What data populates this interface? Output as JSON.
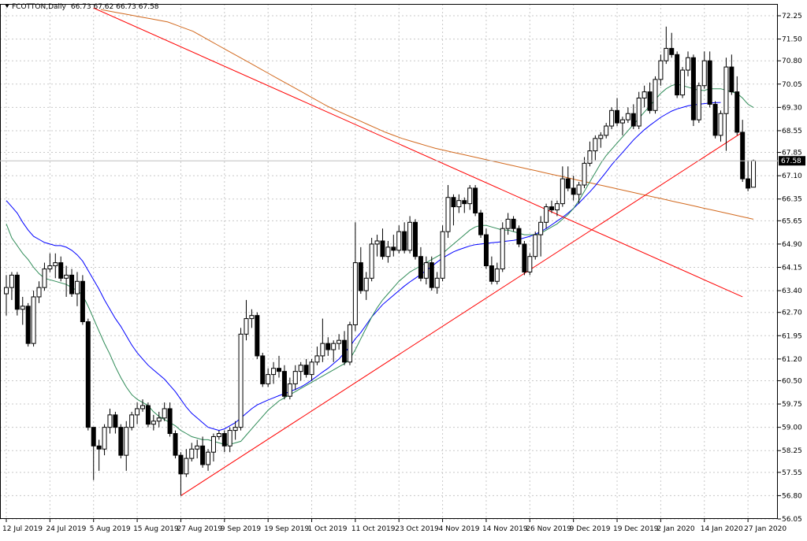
{
  "header": {
    "symbol": "FCOTTON,",
    "timeframe": "Daily",
    "open": "66.73",
    "high": "67.62",
    "low": "66.73",
    "close": "67.58"
  },
  "price_label": "67.58",
  "colors": {
    "up_body": "#ffffff",
    "down_body": "#000000",
    "ma_fast": "#2e8b57",
    "ma_mid": "#0000ff",
    "ma_slow": "#d2691e",
    "trendline": "#ff0000",
    "grid": "#c8c8c8",
    "price_line": "#c0c0c0"
  },
  "chart_data": {
    "type": "candlestick",
    "title": "FCOTTON, Daily",
    "ylim": [
      56.05,
      72.5
    ],
    "grid": true,
    "y_ticks": [
      "72.25",
      "71.50",
      "70.80",
      "70.05",
      "69.30",
      "68.55",
      "67.85",
      "67.10",
      "66.35",
      "65.65",
      "64.90",
      "64.15",
      "63.40",
      "62.70",
      "61.95",
      "61.20",
      "60.50",
      "59.75",
      "59.00",
      "58.25",
      "57.55",
      "56.80",
      "56.05"
    ],
    "x_tick_labels": [
      {
        "label": "12 Jul 2019",
        "bar": 0
      },
      {
        "label": "24 Jul 2019",
        "bar": 8
      },
      {
        "label": "5 Aug 2019",
        "bar": 16
      },
      {
        "label": "15 Aug 2019",
        "bar": 24
      },
      {
        "label": "27 Aug 2019",
        "bar": 32
      },
      {
        "label": "9 Sep 2019",
        "bar": 40
      },
      {
        "label": "19 Sep 2019",
        "bar": 48
      },
      {
        "label": "1 Oct 2019",
        "bar": 56
      },
      {
        "label": "11 Oct 2019",
        "bar": 64
      },
      {
        "label": "23 Oct 2019",
        "bar": 72
      },
      {
        "label": "4 Nov 2019",
        "bar": 80
      },
      {
        "label": "14 Nov 2019",
        "bar": 88
      },
      {
        "label": "26 Nov 2019",
        "bar": 96
      },
      {
        "label": "9 Dec 2019",
        "bar": 104
      },
      {
        "label": "19 Dec 2019",
        "bar": 112
      },
      {
        "label": "2 Jan 2020",
        "bar": 120
      },
      {
        "label": "14 Jan 2020",
        "bar": 128
      },
      {
        "label": "27 Jan 2020",
        "bar": 136
      }
    ],
    "candles_ohlc": [
      [
        63.3,
        63.9,
        62.6,
        63.5
      ],
      [
        63.5,
        64.0,
        63.1,
        63.9
      ],
      [
        63.9,
        64.0,
        62.6,
        62.8
      ],
      [
        62.8,
        63.2,
        62.3,
        62.9
      ],
      [
        62.9,
        63.0,
        61.6,
        61.7
      ],
      [
        61.7,
        63.4,
        61.6,
        63.2
      ],
      [
        63.2,
        63.7,
        63.0,
        63.5
      ],
      [
        63.5,
        64.3,
        63.4,
        64.1
      ],
      [
        64.1,
        64.6,
        64.0,
        64.2
      ],
      [
        64.2,
        64.6,
        63.8,
        64.3
      ],
      [
        64.3,
        64.5,
        63.7,
        63.8
      ],
      [
        63.8,
        64.2,
        63.2,
        63.9
      ],
      [
        63.9,
        64.1,
        63.2,
        63.3
      ],
      [
        63.3,
        64.0,
        62.9,
        63.7
      ],
      [
        63.7,
        63.9,
        62.3,
        62.4
      ],
      [
        62.4,
        62.5,
        58.9,
        59.0
      ],
      [
        59.0,
        59.0,
        57.3,
        58.4
      ],
      [
        58.4,
        58.6,
        57.6,
        58.3
      ],
      [
        58.3,
        59.1,
        58.1,
        59.0
      ],
      [
        59.0,
        59.6,
        58.8,
        59.4
      ],
      [
        59.4,
        59.5,
        58.8,
        59.0
      ],
      [
        59.0,
        59.1,
        58.0,
        58.1
      ],
      [
        58.1,
        59.2,
        57.6,
        59.0
      ],
      [
        59.0,
        59.5,
        58.9,
        59.4
      ],
      [
        59.4,
        59.8,
        59.1,
        59.6
      ],
      [
        59.6,
        59.9,
        59.5,
        59.7
      ],
      [
        59.7,
        59.8,
        59.0,
        59.1
      ],
      [
        59.1,
        59.4,
        58.9,
        59.2
      ],
      [
        59.2,
        59.5,
        59.0,
        59.3
      ],
      [
        59.3,
        59.8,
        59.2,
        59.6
      ],
      [
        59.6,
        59.8,
        58.7,
        58.8
      ],
      [
        58.8,
        58.9,
        58.0,
        58.1
      ],
      [
        58.1,
        58.2,
        56.8,
        57.5
      ],
      [
        57.5,
        58.3,
        57.4,
        58.0
      ],
      [
        58.0,
        58.5,
        57.9,
        58.3
      ],
      [
        58.3,
        58.6,
        58.0,
        58.4
      ],
      [
        58.4,
        58.7,
        57.7,
        57.8
      ],
      [
        57.8,
        58.3,
        57.6,
        58.2
      ],
      [
        58.2,
        58.8,
        57.9,
        58.7
      ],
      [
        58.7,
        58.9,
        58.6,
        58.8
      ],
      [
        58.8,
        58.9,
        58.2,
        58.4
      ],
      [
        58.4,
        59.0,
        58.2,
        58.9
      ],
      [
        58.9,
        59.2,
        58.6,
        59.0
      ],
      [
        59.0,
        62.2,
        58.9,
        62.0
      ],
      [
        62.0,
        63.1,
        61.8,
        62.5
      ],
      [
        62.5,
        62.8,
        62.2,
        62.6
      ],
      [
        62.6,
        62.7,
        61.2,
        61.3
      ],
      [
        61.3,
        61.4,
        60.3,
        60.4
      ],
      [
        60.4,
        60.9,
        60.3,
        60.7
      ],
      [
        60.7,
        61.1,
        60.4,
        60.9
      ],
      [
        60.9,
        61.3,
        60.6,
        60.8
      ],
      [
        60.8,
        61.0,
        59.9,
        60.0
      ],
      [
        60.0,
        60.6,
        59.9,
        60.4
      ],
      [
        60.4,
        61.0,
        60.2,
        60.8
      ],
      [
        60.8,
        61.1,
        60.5,
        61.0
      ],
      [
        61.0,
        61.2,
        60.6,
        60.7
      ],
      [
        60.7,
        61.2,
        60.5,
        61.1
      ],
      [
        61.1,
        61.6,
        61.0,
        61.3
      ],
      [
        61.3,
        62.5,
        61.1,
        61.7
      ],
      [
        61.7,
        61.9,
        61.3,
        61.5
      ],
      [
        61.5,
        61.8,
        61.1,
        61.7
      ],
      [
        61.7,
        62.0,
        61.5,
        61.8
      ],
      [
        61.8,
        62.1,
        61.0,
        61.1
      ],
      [
        61.1,
        62.4,
        61.0,
        62.3
      ],
      [
        62.3,
        65.6,
        62.1,
        64.3
      ],
      [
        64.3,
        64.8,
        63.3,
        63.4
      ],
      [
        63.4,
        64.0,
        63.1,
        63.8
      ],
      [
        63.8,
        65.1,
        63.7,
        64.9
      ],
      [
        64.9,
        65.2,
        64.5,
        65.0
      ],
      [
        65.0,
        65.4,
        64.4,
        64.5
      ],
      [
        64.5,
        65.0,
        64.3,
        64.8
      ],
      [
        64.8,
        65.2,
        64.5,
        64.7
      ],
      [
        64.7,
        65.5,
        64.6,
        65.3
      ],
      [
        65.3,
        65.6,
        64.6,
        64.7
      ],
      [
        64.7,
        65.8,
        64.6,
        65.6
      ],
      [
        65.6,
        65.7,
        64.4,
        64.5
      ],
      [
        64.5,
        64.8,
        63.7,
        63.8
      ],
      [
        63.8,
        64.5,
        63.6,
        64.3
      ],
      [
        64.3,
        64.5,
        63.4,
        63.5
      ],
      [
        63.5,
        64.0,
        63.3,
        63.8
      ],
      [
        63.8,
        65.5,
        63.7,
        65.3
      ],
      [
        65.3,
        66.8,
        65.1,
        66.4
      ],
      [
        66.4,
        66.5,
        65.5,
        66.1
      ],
      [
        66.1,
        66.5,
        65.9,
        66.3
      ],
      [
        66.3,
        66.4,
        65.9,
        66.2
      ],
      [
        66.2,
        66.8,
        66.0,
        66.7
      ],
      [
        66.7,
        66.8,
        65.8,
        65.9
      ],
      [
        65.9,
        66.0,
        65.1,
        65.2
      ],
      [
        65.2,
        65.4,
        64.1,
        64.2
      ],
      [
        64.2,
        64.5,
        63.6,
        63.7
      ],
      [
        63.7,
        64.3,
        63.6,
        64.1
      ],
      [
        64.1,
        65.6,
        64.0,
        65.4
      ],
      [
        65.4,
        65.9,
        65.2,
        65.7
      ],
      [
        65.7,
        65.8,
        65.3,
        65.4
      ],
      [
        65.4,
        65.5,
        64.8,
        64.9
      ],
      [
        64.9,
        65.0,
        63.9,
        64.0
      ],
      [
        64.0,
        64.6,
        63.9,
        64.5
      ],
      [
        64.5,
        65.3,
        64.4,
        65.2
      ],
      [
        65.2,
        65.8,
        64.5,
        65.6
      ],
      [
        65.6,
        66.2,
        65.4,
        66.1
      ],
      [
        66.1,
        66.3,
        65.9,
        66.0
      ],
      [
        66.0,
        66.3,
        65.8,
        66.2
      ],
      [
        66.2,
        67.4,
        66.1,
        67.0
      ],
      [
        67.0,
        67.4,
        66.6,
        66.7
      ],
      [
        66.7,
        67.1,
        66.3,
        66.5
      ],
      [
        66.5,
        66.9,
        66.2,
        66.8
      ],
      [
        66.8,
        67.7,
        66.7,
        67.5
      ],
      [
        67.5,
        68.2,
        67.4,
        67.9
      ],
      [
        67.9,
        68.4,
        67.6,
        68.3
      ],
      [
        68.3,
        68.5,
        68.0,
        68.4
      ],
      [
        68.4,
        68.8,
        68.3,
        68.7
      ],
      [
        68.7,
        69.3,
        68.6,
        69.2
      ],
      [
        69.2,
        69.6,
        68.7,
        68.8
      ],
      [
        68.8,
        69.0,
        68.4,
        68.9
      ],
      [
        68.9,
        69.3,
        68.8,
        69.1
      ],
      [
        69.1,
        69.4,
        68.6,
        68.7
      ],
      [
        68.7,
        69.8,
        68.6,
        69.6
      ],
      [
        69.6,
        70.0,
        69.3,
        69.8
      ],
      [
        69.8,
        70.1,
        69.1,
        69.2
      ],
      [
        69.2,
        70.3,
        69.1,
        70.2
      ],
      [
        70.2,
        71.0,
        70.0,
        70.8
      ],
      [
        70.8,
        71.9,
        70.7,
        71.2
      ],
      [
        71.2,
        71.7,
        70.9,
        71.0
      ],
      [
        71.0,
        71.1,
        69.6,
        69.7
      ],
      [
        69.7,
        70.6,
        69.6,
        70.5
      ],
      [
        70.5,
        71.1,
        70.3,
        70.9
      ],
      [
        70.9,
        71.0,
        68.7,
        68.9
      ],
      [
        68.9,
        70.1,
        68.8,
        70.0
      ],
      [
        70.0,
        71.1,
        69.9,
        70.8
      ],
      [
        70.8,
        71.1,
        69.3,
        69.4
      ],
      [
        69.4,
        69.5,
        68.3,
        68.4
      ],
      [
        68.4,
        69.2,
        68.2,
        69.1
      ],
      [
        69.1,
        70.9,
        67.9,
        70.6
      ],
      [
        70.6,
        71.0,
        69.7,
        69.8
      ],
      [
        69.8,
        70.3,
        68.4,
        68.5
      ],
      [
        68.5,
        68.9,
        66.9,
        67.0
      ],
      [
        67.0,
        67.6,
        66.6,
        66.7
      ],
      [
        66.73,
        67.62,
        66.73,
        67.58
      ]
    ],
    "ma_fast_values": [
      65.55,
      65.1,
      64.85,
      64.6,
      64.4,
      64.15,
      63.95,
      63.8,
      63.75,
      63.7,
      63.65,
      63.6,
      63.5,
      63.4,
      63.25,
      62.9,
      62.5,
      62.1,
      61.7,
      61.35,
      60.95,
      60.6,
      60.3,
      60.05,
      59.9,
      59.8,
      59.7,
      59.5,
      59.35,
      59.25,
      59.15,
      59.05,
      58.9,
      58.8,
      58.7,
      58.65,
      58.6,
      58.6,
      58.55,
      58.5,
      58.45,
      58.45,
      58.5,
      58.55,
      58.75,
      58.95,
      59.15,
      59.35,
      59.55,
      59.7,
      59.85,
      59.95,
      60.05,
      60.15,
      60.25,
      60.35,
      60.45,
      60.55,
      60.65,
      60.75,
      60.85,
      60.95,
      61.05,
      61.2,
      61.5,
      61.85,
      62.2,
      62.55,
      62.85,
      63.1,
      63.3,
      63.5,
      63.7,
      63.85,
      64.0,
      64.1,
      64.2,
      64.3,
      64.4,
      64.5,
      64.6,
      64.75,
      64.9,
      65.05,
      65.2,
      65.35,
      65.45,
      65.5,
      65.5,
      65.45,
      65.4,
      65.35,
      65.35,
      65.3,
      65.25,
      65.2,
      65.2,
      65.2,
      65.25,
      65.35,
      65.45,
      65.55,
      65.7,
      65.85,
      66.05,
      66.3,
      66.6,
      66.9,
      67.2,
      67.5,
      67.75,
      67.95,
      68.15,
      68.35,
      68.55,
      68.75,
      68.95,
      69.15,
      69.35,
      69.55,
      69.75,
      69.9,
      70.0,
      70.05,
      70.0,
      69.95,
      69.9,
      69.85,
      69.85,
      69.9,
      69.9,
      69.9,
      69.85,
      69.8,
      69.75,
      69.6,
      69.4,
      69.3
    ],
    "ma_mid_values": [
      66.3,
      66.1,
      65.9,
      65.6,
      65.35,
      65.15,
      65.05,
      64.95,
      64.9,
      64.85,
      64.85,
      64.8,
      64.7,
      64.55,
      64.35,
      64.05,
      63.75,
      63.45,
      63.1,
      62.8,
      62.5,
      62.25,
      61.95,
      61.65,
      61.4,
      61.2,
      61.0,
      60.85,
      60.7,
      60.55,
      60.35,
      60.15,
      59.9,
      59.65,
      59.45,
      59.3,
      59.15,
      59.0,
      58.95,
      58.9,
      58.95,
      59.05,
      59.15,
      59.3,
      59.45,
      59.6,
      59.72,
      59.8,
      59.88,
      59.95,
      60.02,
      60.08,
      60.15,
      60.22,
      60.3,
      60.4,
      60.52,
      60.65,
      60.78,
      60.9,
      61.05,
      61.2,
      61.4,
      61.6,
      61.85,
      62.05,
      62.3,
      62.55,
      62.75,
      62.95,
      63.1,
      63.25,
      63.4,
      63.55,
      63.68,
      63.8,
      63.92,
      64.05,
      64.18,
      64.32,
      64.45,
      64.55,
      64.65,
      64.72,
      64.78,
      64.84,
      64.88,
      64.9,
      64.92,
      64.94,
      64.96,
      64.98,
      65.0,
      65.02,
      65.05,
      65.1,
      65.15,
      65.22,
      65.3,
      65.4,
      65.52,
      65.64,
      65.76,
      65.9,
      66.05,
      66.22,
      66.4,
      66.58,
      66.78,
      67.0,
      67.22,
      67.45,
      67.65,
      67.85,
      68.05,
      68.25,
      68.42,
      68.58,
      68.72,
      68.85,
      68.98,
      69.08,
      69.18,
      69.25,
      69.3,
      69.35,
      69.38,
      69.4,
      69.42,
      69.44,
      69.45,
      69.46
    ],
    "ma_slow_values": [
      72.45,
      72.4,
      72.35,
      72.3,
      72.25,
      72.2,
      72.15,
      72.1,
      72.05,
      71.95,
      71.85,
      71.75,
      71.6,
      71.45,
      71.3,
      71.15,
      71.0,
      70.85,
      70.7,
      70.55,
      70.4,
      70.25,
      70.1,
      69.95,
      69.8,
      69.65,
      69.5,
      69.35,
      69.22,
      69.1,
      68.98,
      68.86,
      68.74,
      68.62,
      68.5,
      68.4,
      68.3,
      68.22,
      68.14,
      68.06,
      67.98,
      67.92,
      67.86,
      67.8,
      67.74,
      67.68,
      67.62,
      67.56,
      67.5,
      67.44,
      67.38,
      67.32,
      67.26,
      67.2,
      67.14,
      67.08,
      67.02,
      66.96,
      66.9,
      66.84,
      66.78,
      66.72,
      66.66,
      66.6,
      66.54,
      66.48,
      66.42,
      66.36,
      66.3,
      66.24,
      66.18,
      66.12,
      66.06,
      66.0,
      65.94,
      65.88,
      65.82,
      65.76,
      65.7
    ],
    "trendlines": [
      {
        "from_bar": 16,
        "from_value": 72.5,
        "to_bar": 135,
        "to_value": 63.2
      },
      {
        "from_bar": 32,
        "from_value": 56.8,
        "to_bar": 135,
        "to_value": 68.5
      }
    ]
  }
}
